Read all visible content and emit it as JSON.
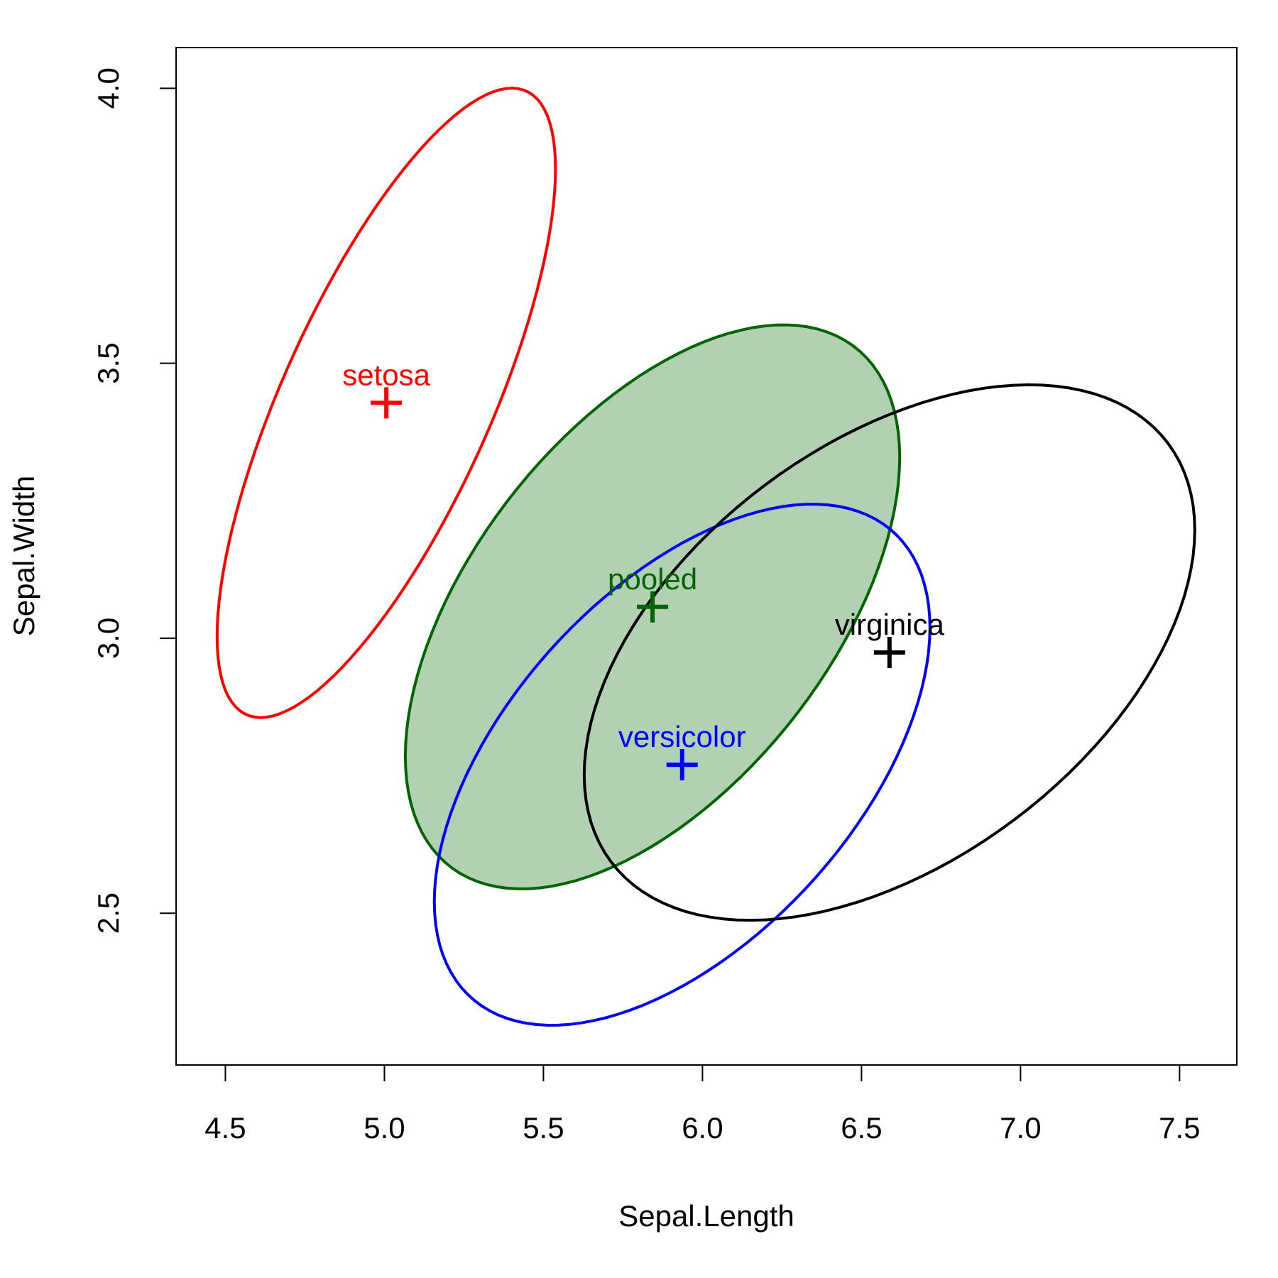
{
  "chart_data": {
    "type": "scatter",
    "xlabel": "Sepal.Length",
    "ylabel": "Sepal.Width",
    "xlim": [
      4.345,
      7.68
    ],
    "ylim": [
      2.224,
      4.074
    ],
    "xticks": [
      4.5,
      {
        "value": 5,
        "label": "5.0"
      },
      5.5,
      {
        "value": 6,
        "label": "6.0"
      },
      6.5,
      {
        "value": 7,
        "label": "7.0"
      },
      7.5
    ],
    "yticks": [
      2.5,
      {
        "value": 3,
        "label": "3.0"
      },
      3.5,
      {
        "value": 4,
        "label": "4.0"
      }
    ],
    "level": 0.68,
    "series": [
      {
        "name": "pooled",
        "color": "#006400",
        "fill": "rgba(0,100,0,0.3)",
        "x": [
          5.843
        ],
        "values": [
          3.057
        ],
        "cov": [
          0.265,
          0.0927,
          0.1154
        ]
      },
      {
        "name": "setosa",
        "color": "#ff0000",
        "x": [
          5.006
        ],
        "values": [
          3.428
        ],
        "cov": [
          0.1242,
          0.0992,
          0.1437
        ]
      },
      {
        "name": "versicolor",
        "color": "#0000ff",
        "x": [
          5.936
        ],
        "values": [
          2.77
        ],
        "cov": [
          0.2664,
          0.0852,
          0.0985
        ]
      },
      {
        "name": "virginica",
        "color": "#000000",
        "x": [
          6.588
        ],
        "values": [
          2.974
        ],
        "cov": [
          0.4043,
          0.0938,
          0.104
        ]
      }
    ]
  }
}
